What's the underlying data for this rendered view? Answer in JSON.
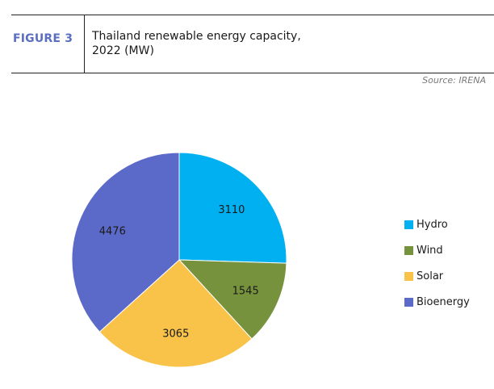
{
  "header": {
    "figure_label": "FIGURE 3",
    "title_line1": "Thailand renewable energy capacity,",
    "title_line2": "2022 (MW)",
    "source": "Source: IRENA"
  },
  "colors": {
    "accent": "#5a6fc0",
    "hydro": "#00b0f0",
    "wind": "#76923c",
    "solar": "#f9c349",
    "bioenergy": "#5b6ac8"
  },
  "chart_data": {
    "type": "pie",
    "title": "Thailand renewable energy capacity, 2022 (MW)",
    "categories": [
      "Hydro",
      "Wind",
      "Solar",
      "Bioenergy"
    ],
    "values": [
      3110,
      1545,
      3065,
      4476
    ],
    "start_angle": "12 o'clock",
    "direction": "clockwise",
    "legend": "right",
    "data_labels": [
      "3110",
      "1545",
      "3065",
      "4476"
    ]
  }
}
